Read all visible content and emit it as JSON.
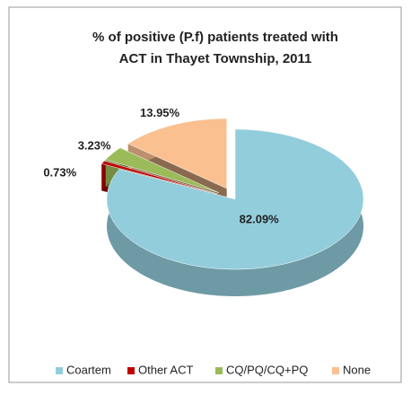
{
  "chart_data": {
    "type": "pie",
    "title": [
      "% of positive (P.f) patients treated with",
      "ACT in Thayet Township, 2011"
    ],
    "categories": [
      "Coartem",
      "Other ACT",
      "CQ/PQ/CQ+PQ",
      "None"
    ],
    "values": [
      82.09,
      0.73,
      3.23,
      13.95
    ],
    "value_labels": [
      "82.09%",
      "0.73%",
      "3.23%",
      "13.95%"
    ],
    "colors": [
      "#92cddc",
      "#c00000",
      "#9bbb59",
      "#fac090"
    ],
    "legend": "bottom"
  }
}
